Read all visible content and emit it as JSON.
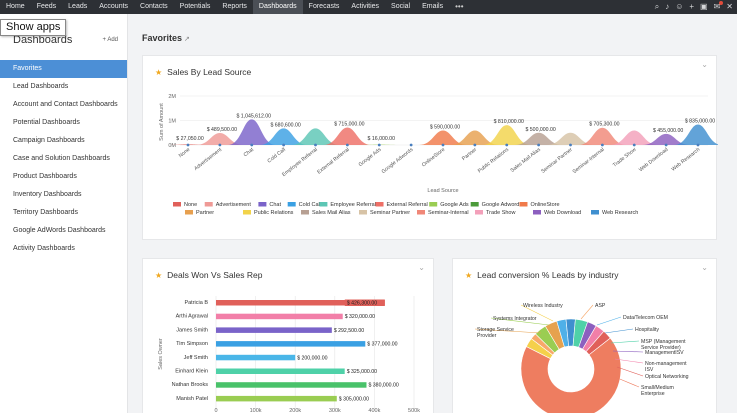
{
  "nav": {
    "items": [
      "Home",
      "Feeds",
      "Leads",
      "Accounts",
      "Contacts",
      "Potentials",
      "Reports",
      "Dashboards",
      "Forecasts",
      "Activities",
      "Social",
      "Emails"
    ],
    "active": "Dashboards",
    "more": "•••",
    "icons": [
      "search-icon",
      "bell-icon",
      "person-icon",
      "plus-icon",
      "calendar-icon",
      "mail-icon",
      "tools-icon"
    ]
  },
  "tooltip": "Show apps",
  "sidebar": {
    "title": "Dashboards",
    "add_label": "+ Add",
    "items": [
      {
        "label": "Favorites",
        "active": true
      },
      {
        "label": "Lead Dashboards"
      },
      {
        "label": "Account and Contact Dashboards"
      },
      {
        "label": "Potential Dashboards"
      },
      {
        "label": "Campaign Dashboards"
      },
      {
        "label": "Case and Solution Dashboards"
      },
      {
        "label": "Product Dashboards"
      },
      {
        "label": "Inventory Dashboards"
      },
      {
        "label": "Territory Dashboards"
      },
      {
        "label": "Google AdWords Dashboards"
      },
      {
        "label": "Activity Dashboards"
      }
    ]
  },
  "page_title": "Favorites",
  "cards": {
    "lead_source": {
      "title": "Sales By Lead Source"
    },
    "deals_won": {
      "title": "Deals Won Vs Sales Rep"
    },
    "lead_conversion": {
      "title": "Lead conversion % Leads by industry"
    }
  },
  "chart_data": [
    {
      "type": "area",
      "title": "Sales By Lead Source",
      "xlabel": "Lead Source",
      "ylabel": "Sum of Amount",
      "yticks": [
        "0M",
        "1M",
        "2M"
      ],
      "ylim": [
        0,
        2000000
      ],
      "categories": [
        "None",
        "Advertisement",
        "Chat",
        "Cold Call",
        "Employee Referral",
        "External Referral",
        "Google Ads",
        "Google Adwords",
        "OnlineStore",
        "Partner",
        "Public Relations",
        "Sales Mail Alias",
        "Seminar Partner",
        "Seminar-Internal",
        "Trade Show",
        "Web Download",
        "Web Research"
      ],
      "colors": [
        "#e0605a",
        "#ef9a96",
        "#7a63c9",
        "#3aa0e3",
        "#5cc6b4",
        "#ee6f66",
        "#9acd52",
        "#4b9b3a",
        "#f07a4a",
        "#e7a04f",
        "#f2d34a",
        "#b7a093",
        "#d7c3a6",
        "#f08778",
        "#f3a0ba",
        "#8c5fbf",
        "#3f8fcf"
      ],
      "values": [
        27050,
        489500,
        1045612,
        680600,
        680000,
        715000,
        16000,
        0,
        590000,
        590000,
        810000,
        500000,
        500000,
        705300,
        590000,
        455000,
        835000
      ],
      "data_labels": [
        "$ 27,050.00",
        "$ 489,500.00",
        "$ 1,045,612.00",
        "$ 680,600.00",
        "",
        "$ 715,000.00",
        "$ 16,000.00",
        "",
        "$ 590,000.00",
        "",
        "$ 810,000.00",
        "$ 500,000.00",
        "",
        "$ 705,300.00",
        "",
        "$ 455,000.00",
        "$ 835,000.00"
      ],
      "legend_position": "bottom"
    },
    {
      "type": "bar",
      "orientation": "horizontal",
      "title": "Deals Won Vs Sales Rep",
      "ylabel": "Sales Owner",
      "categories": [
        "Patricia B",
        "Arthi Agrawal",
        "James Smith",
        "Tim Simpson",
        "Jeff Smith",
        "Einhard Klein",
        "Nathan Brooks",
        "Manish Patel"
      ],
      "values": [
        426300,
        320000,
        292500,
        377000,
        200000,
        325000,
        380000,
        305000
      ],
      "data_labels": [
        "$ 426,300.00",
        "$ 320,000.00",
        "$ 292,500.00",
        "$ 377,000.00",
        "$ 200,000.00",
        "$ 325,000.00",
        "$ 380,000.00",
        "$ 305,000.00"
      ],
      "colors": [
        "#e0605a",
        "#f27fa8",
        "#7a63c9",
        "#3aa0e3",
        "#4ab6e8",
        "#4fd1a8",
        "#49c26a",
        "#9acd52"
      ],
      "xticks": [
        "0",
        "100k",
        "200k",
        "300k",
        "400k",
        "500k"
      ],
      "xlim": [
        0,
        500000
      ]
    },
    {
      "type": "pie",
      "title": "Lead conversion % Leads by industry",
      "labels": [
        "Wireless Industry",
        "ASP",
        "Systems Integrator",
        "Storage Service Provider",
        "Data/Telecom OEM",
        "Hospitality",
        "MSP (Management Service Provider)",
        "ManagementISV",
        "Non-management ISV",
        "Optical Networking",
        "Small/Medium Enterprise"
      ],
      "values": [
        3,
        2,
        4,
        4,
        3,
        3,
        4,
        3,
        3,
        3,
        68
      ],
      "colors": [
        "#f5d04b",
        "#f7a86a",
        "#9acd52",
        "#e6a24e",
        "#4fb0e8",
        "#3f8fcf",
        "#4fd1a8",
        "#8c5fbf",
        "#f27fa8",
        "#e0605a",
        "#ee7d60"
      ]
    }
  ]
}
